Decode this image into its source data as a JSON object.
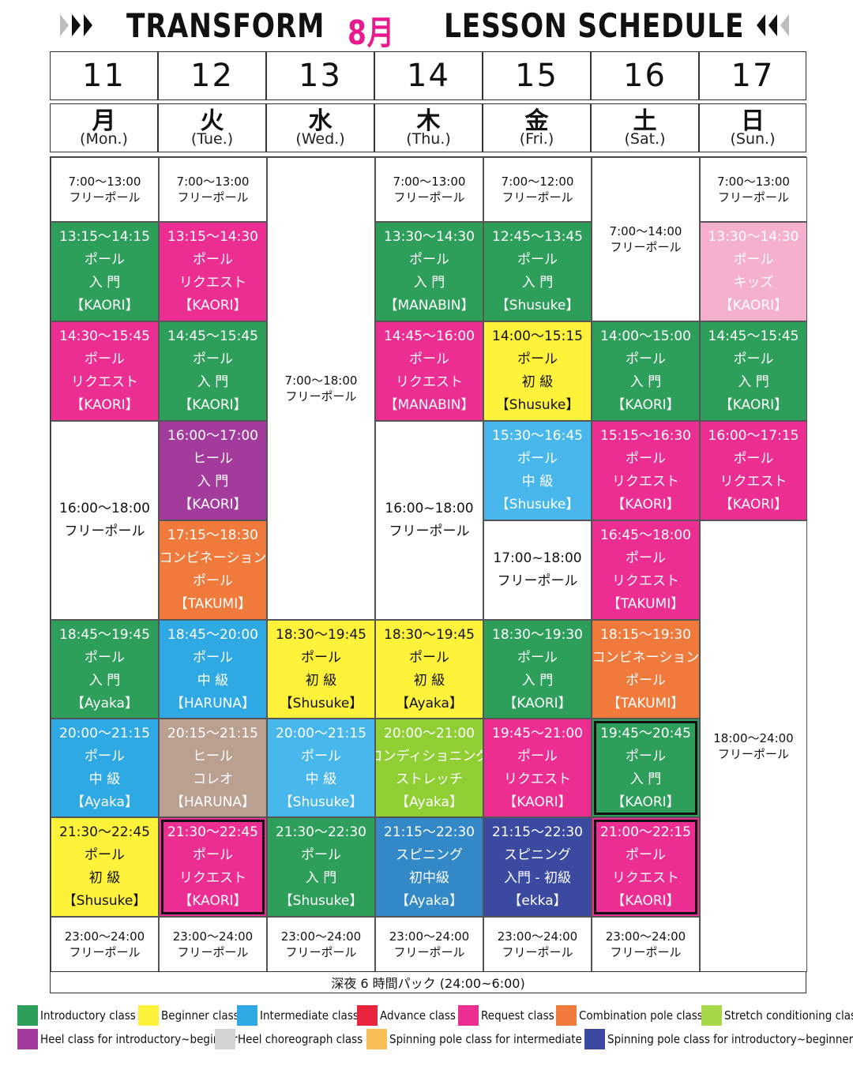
{
  "header": {
    "title_left": "TRANSFORM",
    "month": "8月",
    "title_right": "LESSON SCHEDULE"
  },
  "dates": [
    "11",
    "12",
    "13",
    "14",
    "15",
    "16",
    "17"
  ],
  "weekdays": [
    {
      "jp": "月",
      "en": "(Mon.)"
    },
    {
      "jp": "火",
      "en": "(Tue.)"
    },
    {
      "jp": "水",
      "en": "(Wed.)"
    },
    {
      "jp": "木",
      "en": "(Thu.)"
    },
    {
      "jp": "金",
      "en": "(Fri.)"
    },
    {
      "jp": "土",
      "en": "(Sat.)"
    },
    {
      "jp": "日",
      "en": "(Sun.)"
    }
  ],
  "colors": {
    "introductory": "#2e9e5b",
    "beginner": "#fff23a",
    "intermediate": "#2fa9e3",
    "advance": "#e8253c",
    "request": "#ec2d92",
    "combination": "#ef7a3c",
    "stretch": "#a6d84a",
    "heel_intro": "#a23b9c",
    "heel_choreo": "#d3d3d3",
    "spinning_inter": "#f7bf56",
    "spinning_intro": "#3b4aa0",
    "kids": "#f5b0d0",
    "heel_choreo_cell": "#b9a091",
    "light_blue": "#48b8ec",
    "spin_blue": "#3388c8",
    "lime": "#8fcf34"
  },
  "cells": [
    {
      "lines": [
        "7:00〜13:00",
        "フリーポール"
      ],
      "style": "free"
    },
    {
      "lines": [
        "13:15〜14:15",
        "ポール",
        "入 門",
        "【KAORI】"
      ],
      "color": "introductory"
    },
    {
      "lines": [
        "14:30〜15:45",
        "ポール",
        "リクエスト",
        "【KAORI】"
      ],
      "color": "request"
    },
    {
      "lines": [
        "16:00〜18:00",
        "フリーポール"
      ],
      "style": "freebig"
    },
    {
      "lines": [
        "18:45〜19:45",
        "ポール",
        "入 門",
        "【Ayaka】"
      ],
      "color": "introductory"
    },
    {
      "lines": [
        "20:00〜21:15",
        "ポール",
        "中 級",
        "【Ayaka】"
      ],
      "color": "intermediate"
    },
    {
      "lines": [
        "21:30〜22:45",
        "ポール",
        "初 級",
        "【Shusuke】"
      ],
      "color": "beginner"
    },
    {
      "lines": [
        "23:00〜24:00",
        "フリーポール"
      ],
      "style": "free"
    },
    {
      "lines": [
        "7:00〜13:00",
        "フリーポール"
      ],
      "style": "free"
    },
    {
      "lines": [
        "13:15〜14:30",
        "ポール",
        "リクエスト",
        "【KAORI】"
      ],
      "color": "request"
    },
    {
      "lines": [
        "14:45〜15:45",
        "ポール",
        "入 門",
        "【KAORI】"
      ],
      "color": "introductory"
    },
    {
      "lines": [
        "16:00〜17:00",
        "ヒール",
        "入 門",
        "【KAORI】"
      ],
      "color": "heel_intro"
    },
    {
      "lines": [
        "17:15〜18:30",
        "コンビネーション",
        "ポール",
        "【TAKUMI】"
      ],
      "color": "combination"
    },
    {
      "lines": [
        "18:45〜20:00",
        "ポール",
        "中 級",
        "【HARUNA】"
      ],
      "color": "intermediate"
    },
    {
      "lines": [
        "20:15〜21:15",
        "ヒール",
        "コレオ",
        "【HARUNA】"
      ],
      "color": "heel_choreo_cell"
    },
    {
      "lines": [
        "21:30〜22:45",
        "ポール",
        "リクエスト",
        "【KAORI】"
      ],
      "color": "request",
      "boxed": true
    },
    {
      "lines": [
        "23:00〜24:00",
        "フリーポール"
      ],
      "style": "free"
    },
    {
      "lines": [
        "7:00〜18:00",
        "フリーポール"
      ],
      "style": "free"
    },
    {
      "lines": [
        "18:30〜19:45",
        "ポール",
        "初 級",
        "【Shusuke】"
      ],
      "color": "beginner"
    },
    {
      "lines": [
        "20:00〜21:15",
        "ポール",
        "中 級",
        "【Shusuke】"
      ],
      "color": "light_blue"
    },
    {
      "lines": [
        "21:30〜22:30",
        "ポール",
        "入 門",
        "【Shusuke】"
      ],
      "color": "introductory"
    },
    {
      "lines": [
        "23:00〜24:00",
        "フリーポール"
      ],
      "style": "free"
    },
    {
      "lines": [
        "7:00〜13:00",
        "フリーポール"
      ],
      "style": "free"
    },
    {
      "lines": [
        "13:30〜14:30",
        "ポール",
        "入 門",
        "【MANABIN】"
      ],
      "color": "introductory"
    },
    {
      "lines": [
        "14:45〜16:00",
        "ポール",
        "リクエスト",
        "【MANABIN】"
      ],
      "color": "request"
    },
    {
      "lines": [
        "16:00~18:00",
        "フリーポール"
      ],
      "style": "freebig"
    },
    {
      "lines": [
        "18:30〜19:45",
        "ポール",
        "初 級",
        "【Ayaka】"
      ],
      "color": "beginner"
    },
    {
      "lines": [
        "20:00〜21:00",
        "コンディショニング",
        "ストレッチ",
        "【Ayaka】"
      ],
      "color": "lime"
    },
    {
      "lines": [
        "21:15〜22:30",
        "スピニング",
        "初中級",
        "【Ayaka】"
      ],
      "color": "spin_blue"
    },
    {
      "lines": [
        "23:00〜24:00",
        "フリーポール"
      ],
      "style": "free"
    },
    {
      "lines": [
        "7:00〜12:00",
        "フリーポール"
      ],
      "style": "free"
    },
    {
      "lines": [
        "12:45〜13:45",
        "ポール",
        "入 門",
        "【Shusuke】"
      ],
      "color": "introductory"
    },
    {
      "lines": [
        "14:00〜15:15",
        "ポール",
        "初 級",
        "【Shusuke】"
      ],
      "color": "beginner"
    },
    {
      "lines": [
        "15:30〜16:45",
        "ポール",
        "中 級",
        "【Shusuke】"
      ],
      "color": "light_blue"
    },
    {
      "lines": [
        "17:00~18:00",
        "フリーポール"
      ],
      "style": "freebig"
    },
    {
      "lines": [
        "18:30〜19:30",
        "ポール",
        "入 門",
        "【KAORI】"
      ],
      "color": "introductory"
    },
    {
      "lines": [
        "19:45〜21:00",
        "ポール",
        "リクエスト",
        "【KAORI】"
      ],
      "color": "request"
    },
    {
      "lines": [
        "21:15〜22:30",
        "スピニング",
        "入門 - 初級",
        "【ekka】"
      ],
      "color": "spinning_intro"
    },
    {
      "lines": [
        "23:00〜24:00",
        "フリーポール"
      ],
      "style": "free"
    },
    {
      "lines": [
        "7:00〜14:00",
        "フリーポール"
      ],
      "style": "free"
    },
    {
      "lines": [
        "14:00〜15:00",
        "ポール",
        "入 門",
        "【KAORI】"
      ],
      "color": "introductory"
    },
    {
      "lines": [
        "15:15〜16:30",
        "ポール",
        "リクエスト",
        "【KAORI】"
      ],
      "color": "request"
    },
    {
      "lines": [
        "16:45〜18:00",
        "ポール",
        "リクエスト",
        "【TAKUMI】"
      ],
      "color": "request"
    },
    {
      "lines": [
        "18:15〜19:30",
        "コンビネーション",
        "ポール",
        "【TAKUMI】"
      ],
      "color": "combination"
    },
    {
      "lines": [
        "19:45〜20:45",
        "ポール",
        "入 門",
        "【KAORI】"
      ],
      "color": "introductory",
      "boxed": true
    },
    {
      "lines": [
        "21:00〜22:15",
        "ポール",
        "リクエスト",
        "【KAORI】"
      ],
      "color": "request",
      "boxed": true
    },
    {
      "lines": [
        "23:00〜24:00",
        "フリーポール"
      ],
      "style": "free"
    },
    {
      "lines": [
        "7:00〜13:00",
        "フリーポール"
      ],
      "style": "free"
    },
    {
      "lines": [
        "13:30〜14:30",
        "ポール",
        "キッズ",
        "【KAORI】"
      ],
      "color": "kids"
    },
    {
      "lines": [
        "14:45〜15:45",
        "ポール",
        "入 門",
        "【KAORI】"
      ],
      "color": "introductory"
    },
    {
      "lines": [
        "16:00〜17:15",
        "ポール",
        "リクエスト",
        "【KAORI】"
      ],
      "color": "request"
    },
    {
      "lines": [
        "18:00〜24:00",
        "フリーポール"
      ],
      "style": "free"
    }
  ],
  "late_night": "深夜 6 時間パック (24:00~6:00)",
  "legend": [
    {
      "label": "Introductory class",
      "color": "introductory"
    },
    {
      "label": "Beginner class",
      "color": "beginner"
    },
    {
      "label": "Intermediate class",
      "color": "intermediate"
    },
    {
      "label": "Advance class",
      "color": "advance"
    },
    {
      "label": "Request class",
      "color": "request"
    },
    {
      "label": "Combination pole class",
      "color": "combination"
    },
    {
      "label": "Stretch conditioning class",
      "color": "stretch"
    },
    {
      "label": "Heel class for introductory~beginner",
      "color": "heel_intro"
    },
    {
      "label": "Heel choreograph class",
      "color": "heel_choreo"
    },
    {
      "label": "Spinning pole class for intermediate",
      "color": "spinning_inter"
    },
    {
      "label": "Spinning pole class for introductory~beginner",
      "color": "spinning_intro"
    }
  ]
}
